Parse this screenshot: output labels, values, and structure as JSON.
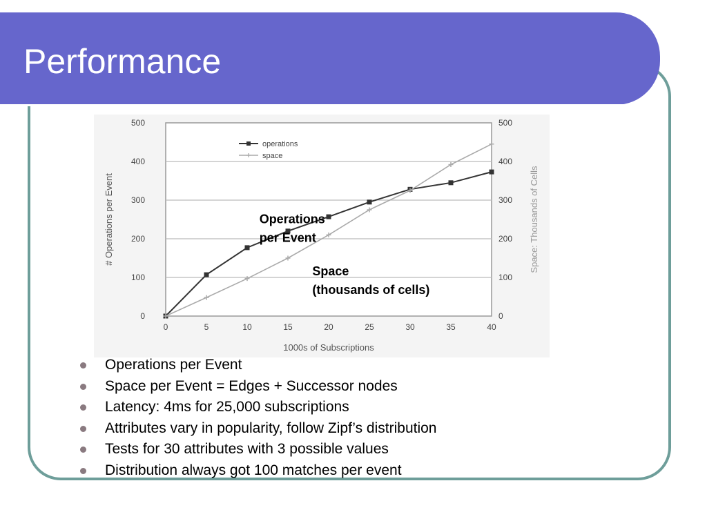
{
  "slide": {
    "title": "Performance",
    "bullets": [
      "Operations per Event",
      "Space per Event = Edges + Successor nodes",
      "Latency: 4ms for 25,000 subscriptions",
      "Attributes vary in popularity, follow Zipf’s distribution",
      "Tests for 30 attributes with 3 possible values",
      "Distribution always got 100 matches per event"
    ]
  },
  "colors": {
    "title_bar": "#6666cc",
    "frame_border": "#6e9e9a",
    "operations_series": "#333333",
    "space_series": "#aaaaaa",
    "bullet_dot": "#8a7a80"
  },
  "chart_data": {
    "type": "line",
    "x": [
      0,
      5,
      10,
      15,
      20,
      25,
      30,
      35,
      40
    ],
    "xlim": [
      0,
      40
    ],
    "x_ticks": [
      "0",
      "5",
      "10",
      "15",
      "20",
      "25",
      "30",
      "35",
      "40"
    ],
    "xlabel": "1000s of Subscriptions",
    "ylabel": "# Operations per Event",
    "ylim": [
      0,
      500
    ],
    "y_ticks": [
      "0",
      "100",
      "200",
      "300",
      "400",
      "500"
    ],
    "y2label": "Space: Thousands of Cells",
    "y2lim": [
      0,
      500
    ],
    "y2_ticks": [
      "0",
      "100",
      "200",
      "300",
      "400",
      "500"
    ],
    "grid": true,
    "legend_position": "top-center",
    "series": [
      {
        "name": "operations",
        "axis": "left",
        "values": [
          0,
          107,
          177,
          220,
          257,
          295,
          328,
          345,
          373
        ]
      },
      {
        "name": "space",
        "axis": "right",
        "values": [
          0,
          48,
          97,
          150,
          210,
          275,
          325,
          392,
          445
        ]
      }
    ],
    "annotations": [
      {
        "lines": [
          "Operations",
          "per Event"
        ],
        "x": 11.5,
        "y": 240
      },
      {
        "lines": [
          "Space",
          "(thousands of cells)"
        ],
        "x": 18.0,
        "y": 105
      }
    ]
  }
}
